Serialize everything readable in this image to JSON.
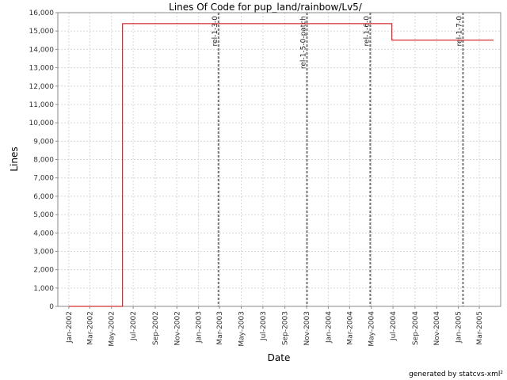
{
  "chart_data": {
    "type": "line",
    "title": "Lines Of Code for pup_land/rainbow/Lv5/",
    "xlabel": "Date",
    "ylabel": "Lines",
    "x_range": [
      "2001-12-01",
      "2005-04-30"
    ],
    "ylim": [
      0,
      16000
    ],
    "y_ticks": [
      0,
      1000,
      2000,
      3000,
      4000,
      5000,
      6000,
      7000,
      8000,
      9000,
      10000,
      11000,
      12000,
      13000,
      14000,
      15000,
      16000
    ],
    "y_tick_labels": [
      "0",
      "1,000",
      "2,000",
      "3,000",
      "4,000",
      "5,000",
      "6,000",
      "7,000",
      "8,000",
      "9,000",
      "10,000",
      "11,000",
      "12,000",
      "13,000",
      "14,000",
      "15,000",
      "16,000"
    ],
    "x_ticks": [
      "2002-01-01",
      "2002-03-01",
      "2002-05-01",
      "2002-07-01",
      "2002-09-01",
      "2002-11-01",
      "2003-01-01",
      "2003-03-01",
      "2003-05-01",
      "2003-07-01",
      "2003-09-01",
      "2003-11-01",
      "2004-01-01",
      "2004-03-01",
      "2004-05-01",
      "2004-07-01",
      "2004-09-01",
      "2004-11-01",
      "2005-01-01",
      "2005-03-01"
    ],
    "x_tick_labels": [
      "Jan-2002",
      "Mar-2002",
      "May-2002",
      "Jul-2002",
      "Sep-2002",
      "Nov-2002",
      "Jan-2003",
      "Mar-2003",
      "May-2003",
      "Jul-2003",
      "Sep-2003",
      "Nov-2003",
      "Jan-2004",
      "Mar-2004",
      "May-2004",
      "Jul-2004",
      "Sep-2004",
      "Nov-2004",
      "Jan-2005",
      "Mar-2005"
    ],
    "grid": true,
    "line_color": "#cc0000",
    "series": [
      {
        "x": [
          "2002-01-01",
          "2002-06-01",
          "2002-06-01",
          "2004-06-28",
          "2004-06-28",
          "2005-04-10"
        ],
        "y": [
          0,
          0,
          15400,
          15400,
          14500,
          14500
        ]
      }
    ],
    "markers": [
      {
        "label": "rel-1-3-0",
        "date": "2003-02-26"
      },
      {
        "label": "rel-1-5-0-patch",
        "date": "2003-11-02"
      },
      {
        "label": "rel-1-6-0",
        "date": "2004-04-28"
      },
      {
        "label": "rel-1-7-0",
        "date": "2005-01-14"
      }
    ]
  },
  "footer": "generated by statcvs-xml²"
}
